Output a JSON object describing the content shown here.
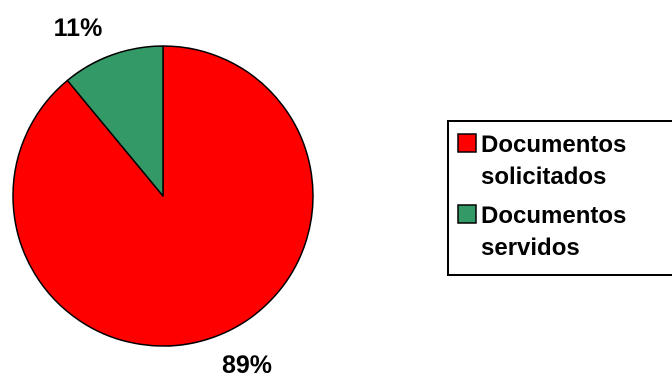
{
  "chart_data": {
    "type": "pie",
    "title": "",
    "categories": [
      "Documentos solicitados",
      "Documentos servidos"
    ],
    "values": [
      89,
      11
    ],
    "data_labels": [
      "89%",
      "11%"
    ],
    "legend": {
      "placement": "right",
      "entries": [
        {
          "lines": [
            "Documentos",
            "solicitados"
          ],
          "color": "#ff0000"
        },
        {
          "lines": [
            "Documentos",
            "servidos"
          ],
          "color": "#339966"
        }
      ]
    },
    "colors": [
      "#ff0000",
      "#339966"
    ]
  }
}
